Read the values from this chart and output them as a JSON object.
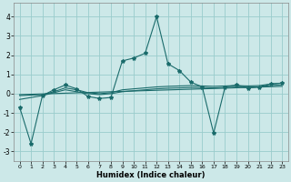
{
  "xlabel": "Humidex (Indice chaleur)",
  "background_color": "#cce8e8",
  "grid_color": "#99cccc",
  "line_color": "#1a6b6b",
  "xlim": [
    -0.5,
    23.5
  ],
  "ylim": [
    -3.5,
    4.7
  ],
  "yticks": [
    -3,
    -2,
    -1,
    0,
    1,
    2,
    3,
    4
  ],
  "xticks": [
    0,
    1,
    2,
    3,
    4,
    5,
    6,
    7,
    8,
    9,
    10,
    11,
    12,
    13,
    14,
    15,
    16,
    17,
    18,
    19,
    20,
    21,
    22,
    23
  ],
  "series_main": [
    [
      0,
      -0.7
    ],
    [
      1,
      -2.6
    ],
    [
      2,
      -0.1
    ],
    [
      3,
      0.2
    ],
    [
      4,
      0.45
    ],
    [
      5,
      0.25
    ],
    [
      6,
      -0.15
    ],
    [
      7,
      -0.25
    ],
    [
      8,
      -0.2
    ],
    [
      9,
      1.7
    ],
    [
      10,
      1.85
    ],
    [
      11,
      2.1
    ],
    [
      12,
      4.0
    ],
    [
      13,
      1.55
    ],
    [
      14,
      1.2
    ],
    [
      15,
      0.6
    ],
    [
      16,
      0.35
    ],
    [
      17,
      -2.05
    ],
    [
      18,
      0.35
    ],
    [
      19,
      0.45
    ],
    [
      20,
      0.3
    ],
    [
      21,
      0.35
    ],
    [
      22,
      0.5
    ],
    [
      23,
      0.55
    ]
  ],
  "series_smooth1": [
    [
      0,
      -0.1
    ],
    [
      2,
      -0.05
    ],
    [
      3,
      0.1
    ],
    [
      4,
      0.3
    ],
    [
      5,
      0.2
    ],
    [
      6,
      0.05
    ],
    [
      7,
      0.0
    ],
    [
      8,
      0.05
    ],
    [
      9,
      0.2
    ],
    [
      10,
      0.25
    ],
    [
      11,
      0.3
    ],
    [
      12,
      0.35
    ],
    [
      13,
      0.38
    ],
    [
      14,
      0.4
    ],
    [
      15,
      0.42
    ],
    [
      16,
      0.4
    ],
    [
      17,
      0.38
    ],
    [
      18,
      0.4
    ],
    [
      19,
      0.42
    ],
    [
      20,
      0.4
    ],
    [
      21,
      0.42
    ],
    [
      22,
      0.5
    ],
    [
      23,
      0.55
    ]
  ],
  "series_smooth2": [
    [
      0,
      -0.3
    ],
    [
      2,
      -0.1
    ],
    [
      3,
      0.05
    ],
    [
      4,
      0.2
    ],
    [
      5,
      0.1
    ],
    [
      6,
      0.0
    ],
    [
      7,
      -0.05
    ],
    [
      8,
      0.0
    ],
    [
      9,
      0.1
    ],
    [
      10,
      0.15
    ],
    [
      11,
      0.2
    ],
    [
      12,
      0.25
    ],
    [
      13,
      0.28
    ],
    [
      14,
      0.3
    ],
    [
      15,
      0.32
    ],
    [
      16,
      0.32
    ],
    [
      17,
      0.3
    ],
    [
      18,
      0.32
    ],
    [
      19,
      0.34
    ],
    [
      20,
      0.33
    ],
    [
      21,
      0.35
    ],
    [
      22,
      0.42
    ],
    [
      23,
      0.46
    ]
  ],
  "series_flat": [
    [
      0,
      -0.05
    ],
    [
      23,
      0.38
    ]
  ]
}
